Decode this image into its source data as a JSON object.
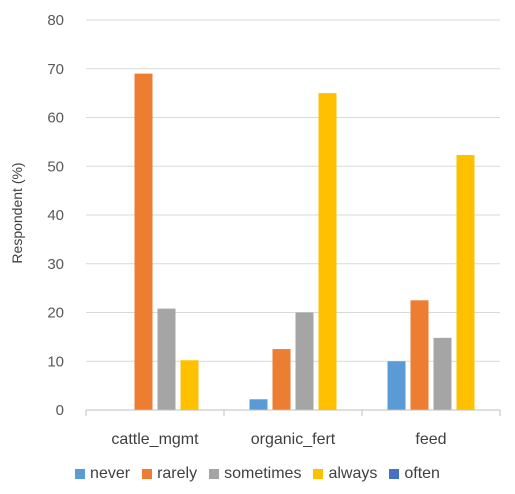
{
  "chart_data": {
    "type": "bar",
    "title": "",
    "xlabel": "",
    "ylabel": "Respondent (%)",
    "ylim": [
      0,
      80
    ],
    "yticks": [
      0,
      10,
      20,
      30,
      40,
      50,
      60,
      70,
      80
    ],
    "grid": true,
    "legend_position": "bottom",
    "categories": [
      "cattle_mgmt",
      "organic_fert",
      "feed"
    ],
    "series": [
      {
        "name": "never",
        "color": "#5b9bd5",
        "values": [
          0,
          2.2,
          10
        ]
      },
      {
        "name": "rarely",
        "color": "#ed7d31",
        "values": [
          69,
          12.5,
          22.5
        ]
      },
      {
        "name": "sometimes",
        "color": "#a5a5a5",
        "values": [
          20.8,
          20,
          14.8
        ]
      },
      {
        "name": "always",
        "color": "#ffc000",
        "values": [
          10.2,
          65,
          52.3
        ]
      },
      {
        "name": "often",
        "color": "#4472c4",
        "values": [
          0,
          0,
          0
        ]
      }
    ]
  }
}
